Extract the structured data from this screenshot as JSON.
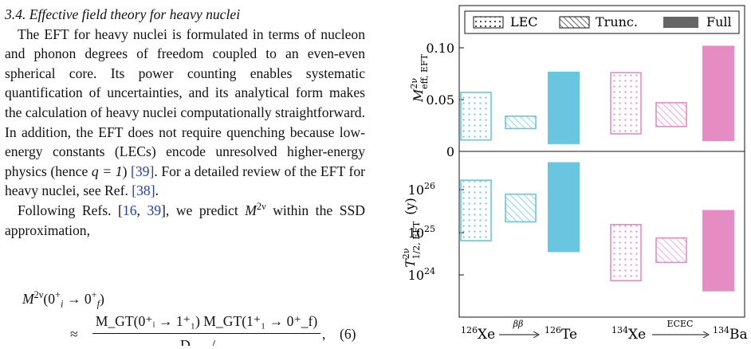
{
  "section": {
    "number": "3.4.",
    "title": "Effective field theory for heavy nuclei"
  },
  "paragraph1": {
    "text_a": "The EFT for heavy nuclei is formulated in terms of nucleon and phonon degrees of freedom coupled to an even-even spherical core. Its power counting enables systematic quantification of uncertainties, and its analytical form makes the calculation of heavy nuclei computationally straightforward. In addition, the EFT does not require quenching because low-energy constants (LECs) encode unresolved higher-energy physics (hence ",
    "q_eq": "q = 1",
    "text_b": ") ",
    "cite1": "[39]",
    "text_c": ". For a detailed review of the EFT for heavy nuclei, see Ref. ",
    "cite2": "[38]",
    "text_d": "."
  },
  "paragraph2": {
    "text_a": "Following Refs. [",
    "cite1": "16",
    "sep": ", ",
    "cite2": "39",
    "text_b": "], we predict ",
    "symbol": "M",
    "symbol_sup": "2ν",
    "text_c": " within the SSD approximation,"
  },
  "equation": {
    "lhs": "M",
    "lhs_sup": "2ν",
    "lhs_args": "(0",
    "lhs_state_i": "i",
    "lhs_arrow": "→ 0",
    "lhs_state_f": "f",
    "lhs_close": ")",
    "approx": "≈",
    "numerator": "M_GT(0⁺ᵢ → 1⁺₁) M_GT(1⁺₁ → 0⁺_f)",
    "denominator": "D — /",
    "number": "(6)"
  },
  "figure": {
    "legend": [
      "LEC",
      "Trunc.",
      "Full"
    ],
    "top_panel": {
      "ylabel_main": "M",
      "ylabel_sup": "2ν",
      "ylabel_sub": "eff, EFT",
      "ylim": [
        0,
        0.11
      ],
      "yticks": [
        "0.10",
        "0.05",
        "0"
      ]
    },
    "bottom_panel": {
      "ylabel_main": "T",
      "ylabel_sup": "2ν",
      "ylabel_sub": "1/2, EFT",
      "ylabel_unit": "(y)",
      "ytick_exp": [
        "26",
        "25",
        "24"
      ],
      "ytick_base": "10"
    },
    "groups": [
      {
        "parent_mass": "126",
        "parent": "Xe",
        "process": "ββ",
        "daughter_mass": "126",
        "daughter": "Te"
      },
      {
        "parent_mass": "134",
        "parent": "Xe",
        "process": "ECEC",
        "daughter_mass": "134",
        "daughter": "Ba"
      }
    ],
    "colors": {
      "126Xe": "#69c6e0",
      "134Xe": "#e68cc4",
      "axis": "#111111"
    }
  },
  "chart_data": [
    {
      "type": "bar",
      "subtype": "floating-range",
      "title": "",
      "ylabel": "M^{2ν}_{eff, EFT}",
      "ylim": [
        0,
        0.11
      ],
      "legend": "top",
      "categories": [
        "126Xe → 126Te",
        "134Xe → 134Ba"
      ],
      "series": [
        {
          "name": "LEC",
          "ranges": [
            [
              0.011,
              0.057
            ],
            [
              0.017,
              0.076
            ]
          ]
        },
        {
          "name": "Trunc.",
          "ranges": [
            [
              0.022,
              0.034
            ],
            [
              0.024,
              0.047
            ]
          ]
        },
        {
          "name": "Full",
          "ranges": [
            [
              0.007,
              0.077
            ],
            [
              0.01,
              0.102
            ]
          ]
        }
      ]
    },
    {
      "type": "bar",
      "subtype": "floating-range",
      "title": "",
      "ylabel": "T^{2ν}_{1/2, EFT} (y)",
      "yscale": "log",
      "ylim": [
        3.5e+23,
        6e+26
      ],
      "categories": [
        "126Xe → 126Te",
        "134Xe → 134Ba"
      ],
      "series": [
        {
          "name": "LEC",
          "ranges": [
            [
              6.5e+24,
              1.7e+26
            ],
            [
              7.5e+23,
              1.55e+25
            ]
          ]
        },
        {
          "name": "Trunc.",
          "ranges": [
            [
              1.8e+25,
              8e+25
            ],
            [
              2e+24,
              7.5e+24
            ]
          ]
        },
        {
          "name": "Full",
          "ranges": [
            [
              3.5e+24,
              4.5e+26
            ],
            [
              4.2e+23,
              3.4e+25
            ]
          ]
        }
      ]
    }
  ]
}
